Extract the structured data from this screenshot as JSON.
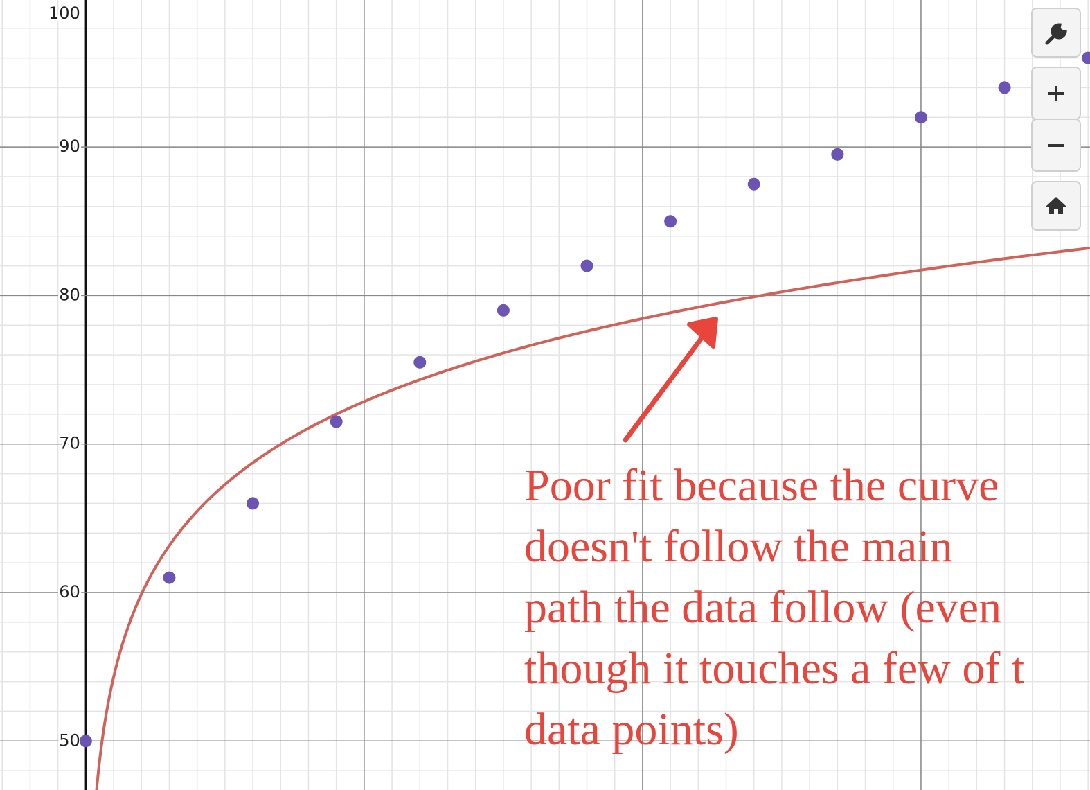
{
  "chart_data": {
    "type": "scatter",
    "x": [
      0,
      3,
      6,
      9,
      12,
      15,
      18,
      21,
      24,
      27,
      30,
      33,
      36
    ],
    "values": [
      50,
      61,
      66,
      71.5,
      75.5,
      79,
      82,
      85,
      87.5,
      89.5,
      92,
      94,
      96
    ],
    "color": "#6c54b5",
    "curve": {
      "a": 54.3,
      "b": 8.06,
      "color": "#d0625a"
    },
    "xlim": [
      -3.08,
      36.07
    ],
    "ylim": [
      46.7,
      99.9
    ],
    "xticks": [
      0,
      10,
      20,
      30
    ],
    "yticks": [
      50,
      60,
      70,
      80,
      90,
      100
    ],
    "minor_grid": {
      "x": 1,
      "y": 2
    },
    "grid": true,
    "annotation": [
      "Poor fit because the curve",
      "doesn't follow the main",
      "path the data follow (even",
      "though it touches a few of t",
      "data points)"
    ],
    "annotation_color": "#e8453c"
  }
}
